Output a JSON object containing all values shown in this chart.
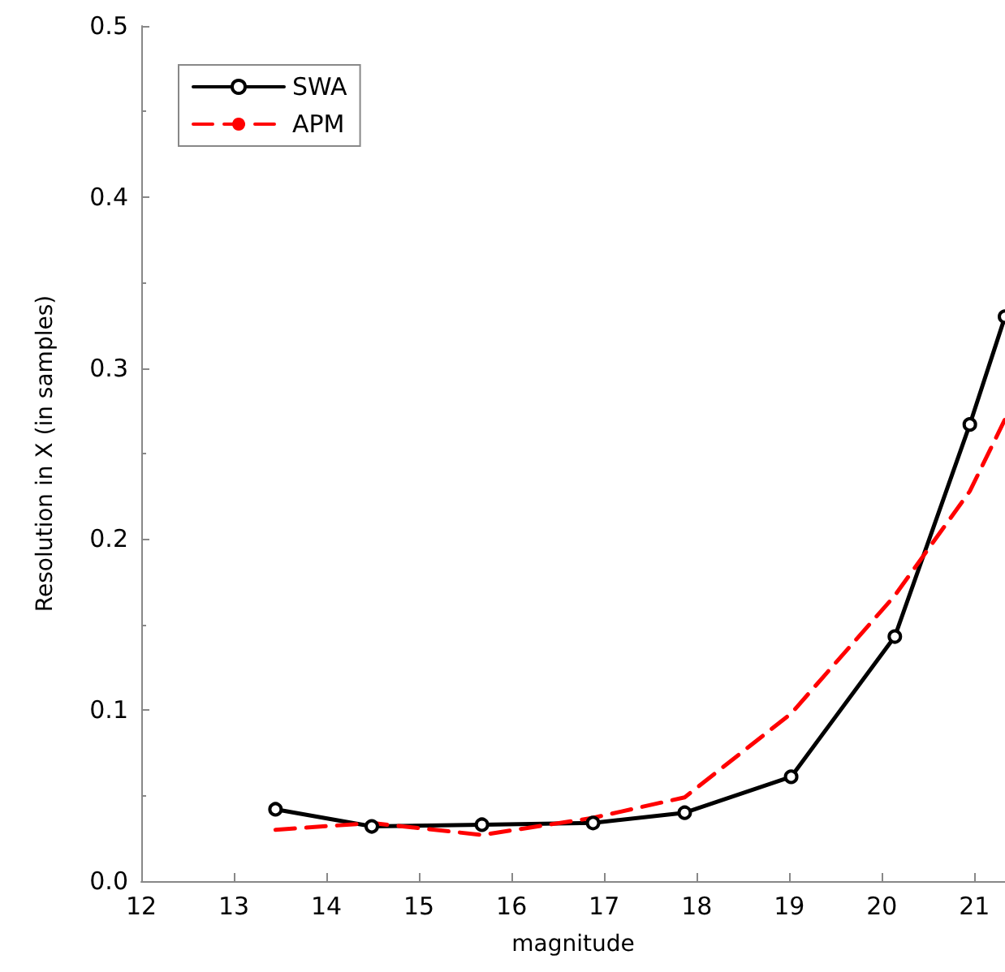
{
  "chart_data": {
    "type": "line",
    "xlabel": "magnitude",
    "ylabel": "Resolution in X (in samples)",
    "xlim": [
      12,
      21.33
    ],
    "xticks": [
      12,
      13,
      14,
      15,
      16,
      17,
      18,
      19,
      20,
      21
    ],
    "ylim": [
      0,
      0.5
    ],
    "yticks": [
      {
        "value": 0,
        "label": "0.0"
      },
      0.1,
      0.2,
      0.3,
      0.4,
      0.5
    ],
    "grid": false,
    "legend": "top left",
    "series": [
      {
        "name": "SWA",
        "color": "#000000",
        "marker": "circle",
        "line_style": "solid",
        "x": [
          13.45,
          14.49,
          15.68,
          16.88,
          17.87,
          19.02,
          20.14,
          20.95,
          21.33
        ],
        "values": [
          0.042,
          0.032,
          0.033,
          0.034,
          0.04,
          0.061,
          0.143,
          0.267,
          0.33
        ]
      },
      {
        "name": "APM",
        "color": "#ff0000",
        "marker": "none",
        "line_style": "dashed",
        "x": [
          13.45,
          14.49,
          15.68,
          16.88,
          17.87,
          19.02,
          20.14,
          20.95,
          21.33
        ],
        "values": [
          0.03,
          0.034,
          0.027,
          0.037,
          0.049,
          0.098,
          0.167,
          0.228,
          0.27
        ]
      }
    ]
  }
}
